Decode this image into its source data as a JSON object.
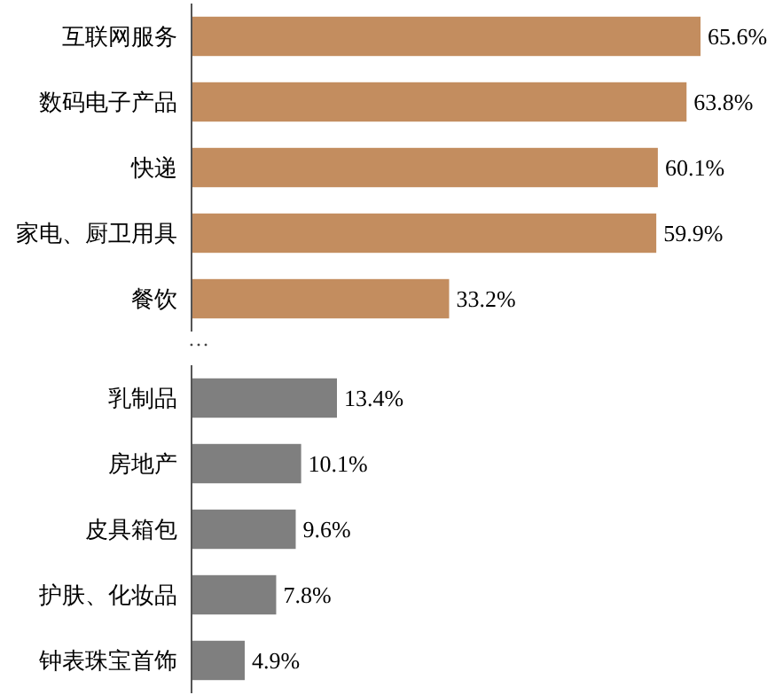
{
  "chart_data": [
    {
      "type": "bar",
      "orientation": "horizontal",
      "categories": [
        "互联网服务",
        "数码电子产品",
        "快递",
        "家电、厨卫用具",
        "餐饮"
      ],
      "values": [
        65.6,
        63.8,
        60.1,
        59.9,
        33.2
      ],
      "color": "#c38d5f",
      "value_labels": [
        "65.6%",
        "63.8%",
        "60.1%",
        "59.9%",
        "33.2%"
      ],
      "annotations": [
        "…"
      ]
    },
    {
      "type": "bar",
      "orientation": "horizontal",
      "categories": [
        "乳制品",
        "房地产",
        "皮具箱包",
        "护肤、化妆品",
        "钟表珠宝首饰"
      ],
      "values": [
        13.4,
        10.1,
        9.6,
        7.8,
        4.9
      ],
      "color": "#7f7f7f",
      "value_labels": [
        "13.4%",
        "10.1%",
        "9.6%",
        "7.8%",
        "4.9%"
      ]
    }
  ]
}
